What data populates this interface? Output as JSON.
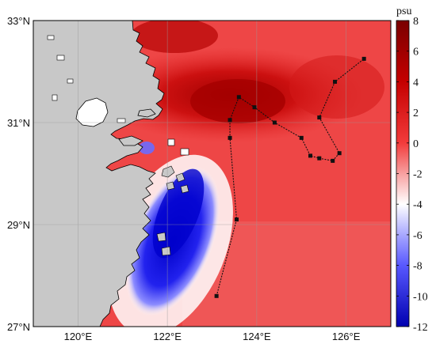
{
  "map": {
    "lat_labels": [
      "33°N",
      "31°N",
      "29°N",
      "27°N"
    ],
    "lon_labels": [
      "120°E",
      "122°E",
      "124°E",
      "126°E"
    ],
    "lat_values": [
      33,
      31,
      29,
      27
    ],
    "lon_values": [
      120,
      122,
      124,
      126
    ],
    "extent": {
      "lon_min": 119,
      "lon_max": 127,
      "lat_min": 27,
      "lat_max": 33
    }
  },
  "colorbar": {
    "unit": "psu",
    "tick_labels": [
      "8",
      "6",
      "4",
      "2",
      "0",
      "-2",
      "-4",
      "-6",
      "-8",
      "-10",
      "-12"
    ],
    "tick_values": [
      8,
      6,
      4,
      2,
      0,
      -2,
      -4,
      -6,
      -8,
      -10,
      -12
    ],
    "range": [
      -12,
      8
    ],
    "colors": {
      "max": "#7a0000",
      "pos": "#ee2a2a",
      "zero": "#ffffff",
      "neg": "#2b2bff",
      "min": "#0000a8"
    }
  },
  "chart_data": {
    "type": "heatmap",
    "xlabel": "",
    "ylabel": "",
    "xlim": [
      119,
      127
    ],
    "ylim": [
      27,
      33
    ],
    "grid": true,
    "colorscale_range": [
      -12,
      8
    ],
    "colorbar_unit": "psu",
    "track": {
      "points": [
        [
          123.1,
          27.6
        ],
        [
          123.55,
          29.1
        ],
        [
          123.4,
          30.7
        ],
        [
          123.4,
          31.05
        ],
        [
          123.6,
          31.5
        ],
        [
          123.95,
          31.3
        ],
        [
          124.4,
          31.0
        ],
        [
          125.0,
          30.7
        ],
        [
          125.2,
          30.35
        ],
        [
          125.4,
          30.3
        ],
        [
          125.7,
          30.25
        ],
        [
          125.85,
          30.4
        ],
        [
          125.4,
          31.1
        ],
        [
          125.75,
          31.8
        ],
        [
          126.4,
          32.25
        ]
      ]
    },
    "colors": {
      "land": "#c8c8c8",
      "coast": "#000000",
      "track": "#111111"
    }
  }
}
